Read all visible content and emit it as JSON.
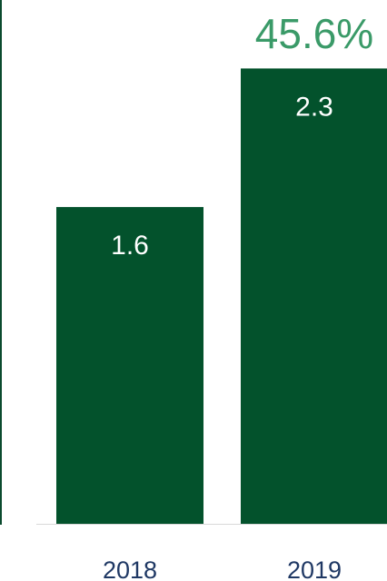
{
  "colors": {
    "bar": "#03522c",
    "bar_label": "#ffffff",
    "growth_label": "#3a9a68",
    "axis_label": "#1f3864",
    "axis_line": "#d9d9d9",
    "left_rule": "#0b4a2e"
  },
  "chart_data": {
    "type": "bar",
    "categories": [
      "2018",
      "2019"
    ],
    "values": [
      1.6,
      2.3
    ],
    "value_labels": [
      "1.6",
      "2.3"
    ],
    "annotation": "45.6%",
    "ylim": [
      0,
      2.6
    ],
    "grid": false
  }
}
